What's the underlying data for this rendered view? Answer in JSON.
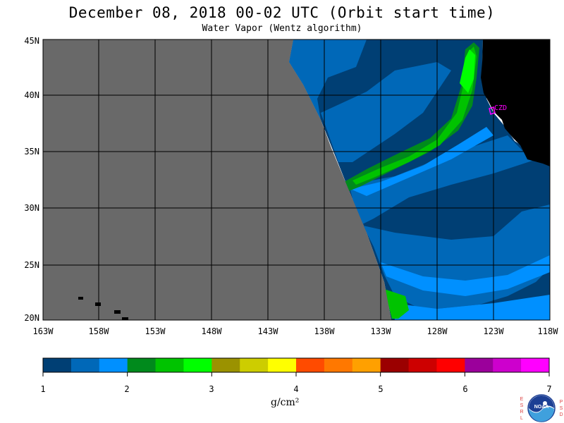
{
  "title": "December 08, 2018  00-02 UTC  (Orbit start time)",
  "subtitle": "Water Vapor (Wentz algorithm)",
  "map": {
    "lat_labels": [
      "45N",
      "40N",
      "35N",
      "30N",
      "25N",
      "20N"
    ],
    "lon_labels": [
      "163W",
      "158W",
      "153W",
      "148W",
      "143W",
      "138W",
      "133W",
      "128W",
      "123W",
      "118W"
    ],
    "station_label": "CZD",
    "colors": {
      "no_data": "#696969",
      "land": "#000000",
      "grid": "#000000",
      "station": "#ff00ff"
    }
  },
  "colorbar": {
    "ticks": [
      "1",
      "2",
      "3",
      "4",
      "5",
      "6",
      "7"
    ],
    "unit": "g/cm²",
    "colors": [
      "#003f74",
      "#0068b8",
      "#0090ff",
      "#008a1c",
      "#00c300",
      "#00ff00",
      "#9b9200",
      "#cdcd00",
      "#ffff00",
      "#ff4b00",
      "#ff7800",
      "#ffa000",
      "#9b0000",
      "#cd0000",
      "#ff0000",
      "#9b009b",
      "#cd00cd",
      "#ff00ff"
    ]
  },
  "logo": {
    "left_letters": [
      "E",
      "S",
      "R",
      "L"
    ],
    "right_letters": [
      "P",
      "S",
      "D"
    ],
    "text": "NOAA"
  }
}
